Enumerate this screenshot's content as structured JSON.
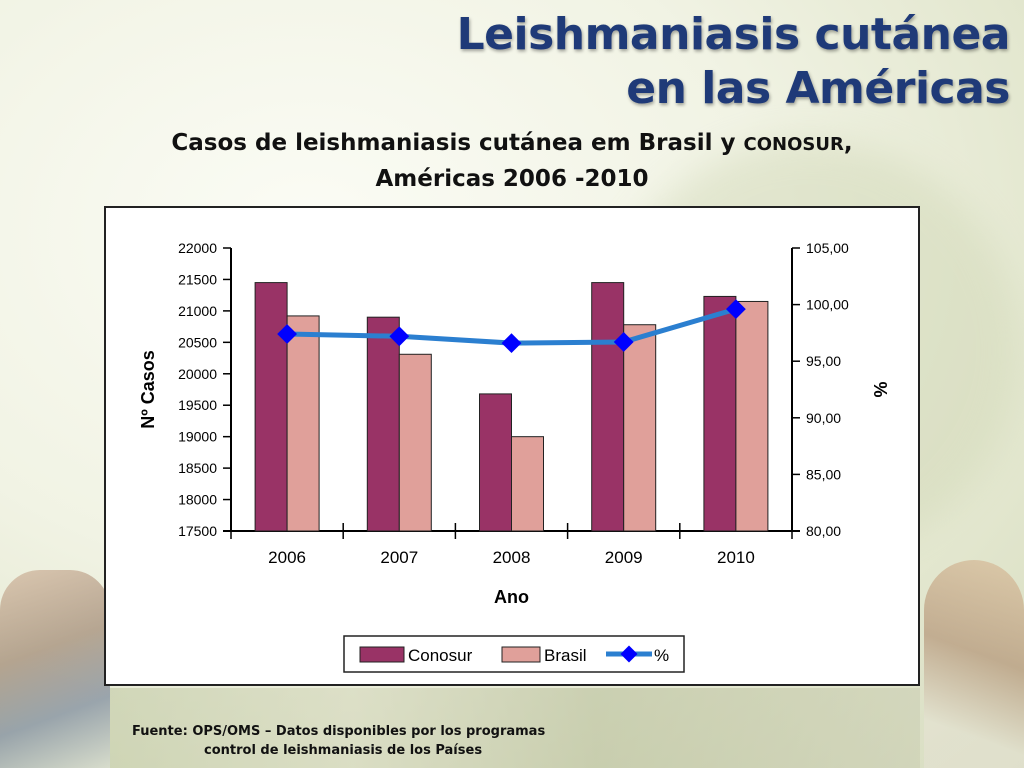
{
  "header": {
    "title_line1": "Leishmaniasis cutánea",
    "title_line2": "en las Américas"
  },
  "subtitle": {
    "part1": "Casos de leishmaniasis cutánea em Brasil y ",
    "part2": "CONOSUR",
    "part3": ",",
    "line2": "Américas 2006 -2010"
  },
  "source": {
    "line1": "Fuente:  OPS/OMS – Datos disponibles por los programas",
    "line2": "control de leishmaniasis de los Países"
  },
  "colors": {
    "conosur": "#993366",
    "brasil": "#e0a09a",
    "percent": "#2b7fd0",
    "marker": "#0000ff",
    "title": "#1f3a78"
  },
  "chart_data": {
    "type": "bar",
    "title": "",
    "xlabel": "Ano",
    "ylabel": "Nº Casos",
    "y2label": "%",
    "categories": [
      "2006",
      "2007",
      "2008",
      "2009",
      "2010"
    ],
    "ylim": [
      17500,
      22000
    ],
    "y_ticks": [
      "22000",
      "21500",
      "21000",
      "20500",
      "20000",
      "19500",
      "19000",
      "18500",
      "18000",
      "17500"
    ],
    "y2lim": [
      80,
      105
    ],
    "y2_ticks": [
      "105,00",
      "100,00",
      "95,00",
      "90,00",
      "85,00",
      "80,00"
    ],
    "series": [
      {
        "name": "Conosur",
        "kind": "bar",
        "values": [
          21450,
          20900,
          19680,
          21450,
          21230
        ]
      },
      {
        "name": "Brasil",
        "kind": "bar",
        "values": [
          20920,
          20310,
          19000,
          20780,
          21150
        ]
      },
      {
        "name": "%",
        "kind": "line",
        "axis": "right",
        "values": [
          97.4,
          97.2,
          96.6,
          96.7,
          99.6
        ]
      }
    ],
    "grid": false,
    "legend": "bottom"
  }
}
